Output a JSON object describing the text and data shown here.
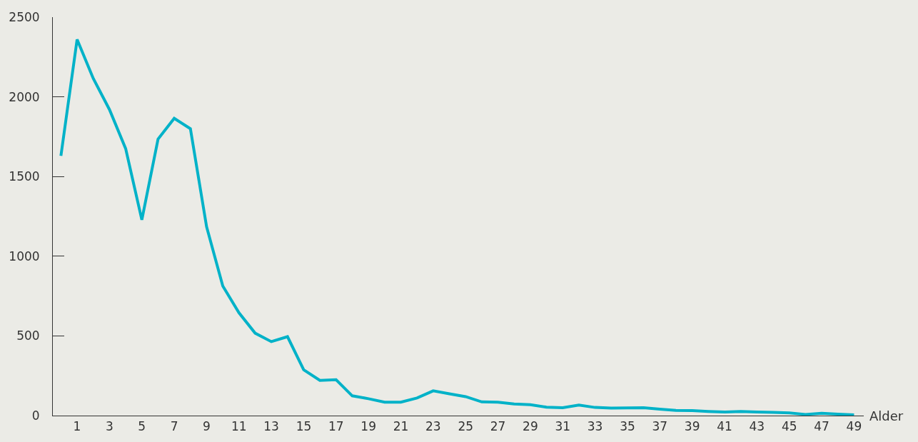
{
  "chart_data": {
    "type": "line",
    "xlabel": "Alder",
    "x": [
      0,
      1,
      2,
      3,
      4,
      5,
      6,
      7,
      8,
      9,
      10,
      11,
      12,
      13,
      14,
      15,
      16,
      17,
      18,
      19,
      20,
      21,
      22,
      23,
      24,
      25,
      26,
      27,
      28,
      29,
      30,
      31,
      32,
      33,
      34,
      35,
      36,
      37,
      38,
      39,
      40,
      41,
      42,
      43,
      44,
      45,
      46,
      47,
      48,
      49
    ],
    "series": [
      {
        "color": "#00b2c8",
        "values": [
          1630,
          2360,
          2115,
          1920,
          1675,
          1228,
          1735,
          1865,
          1800,
          1185,
          813,
          645,
          517,
          464,
          495,
          287,
          221,
          225,
          124,
          106,
          84,
          84,
          110,
          155,
          137,
          119,
          86,
          84,
          73,
          68,
          53,
          49,
          66,
          51,
          47,
          48,
          49,
          40,
          33,
          31,
          26,
          22,
          26,
          22,
          20,
          17,
          7,
          15,
          9,
          4
        ]
      }
    ],
    "xlim": [
      -0.5,
      49.6
    ],
    "xticks": [
      1,
      3,
      5,
      7,
      9,
      11,
      13,
      15,
      17,
      19,
      21,
      23,
      25,
      27,
      29,
      31,
      33,
      35,
      37,
      39,
      41,
      43,
      45,
      47,
      49
    ],
    "ylim": [
      0,
      2500
    ],
    "yticks": [
      0,
      500,
      1000,
      1500,
      2000,
      2500
    ],
    "grid": false,
    "marker": "none",
    "line_style": "solid"
  }
}
